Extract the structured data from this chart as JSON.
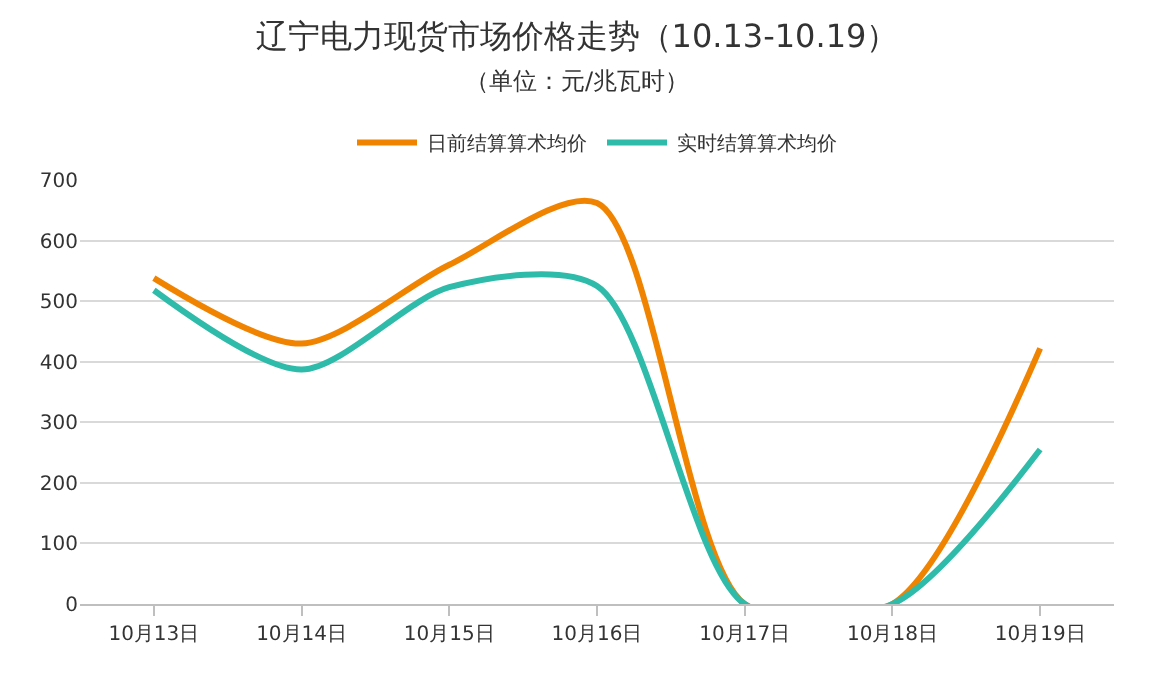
{
  "chart_data": {
    "type": "line",
    "title": "辽宁电力现货市场价格走势（10.13-10.19）",
    "subtitle": "（单位：元/兆瓦时）",
    "categories": [
      "10月13日",
      "10月14日",
      "10月15日",
      "10月16日",
      "10月17日",
      "10月18日",
      "10月19日"
    ],
    "series": [
      {
        "name": "日前结算算术均价",
        "color": "#f08300",
        "values": [
          538,
          430,
          560,
          662,
          0,
          0,
          422
        ]
      },
      {
        "name": "实时结算算术均价",
        "color": "#2ebbaa",
        "values": [
          518,
          387,
          523,
          525,
          0,
          0,
          255
        ]
      }
    ],
    "ylim": [
      0,
      700
    ],
    "yticks": [
      0,
      100,
      200,
      300,
      400,
      500,
      600,
      700
    ],
    "grid": "y",
    "legend": "top",
    "marker": "none",
    "line_style": "solid"
  }
}
